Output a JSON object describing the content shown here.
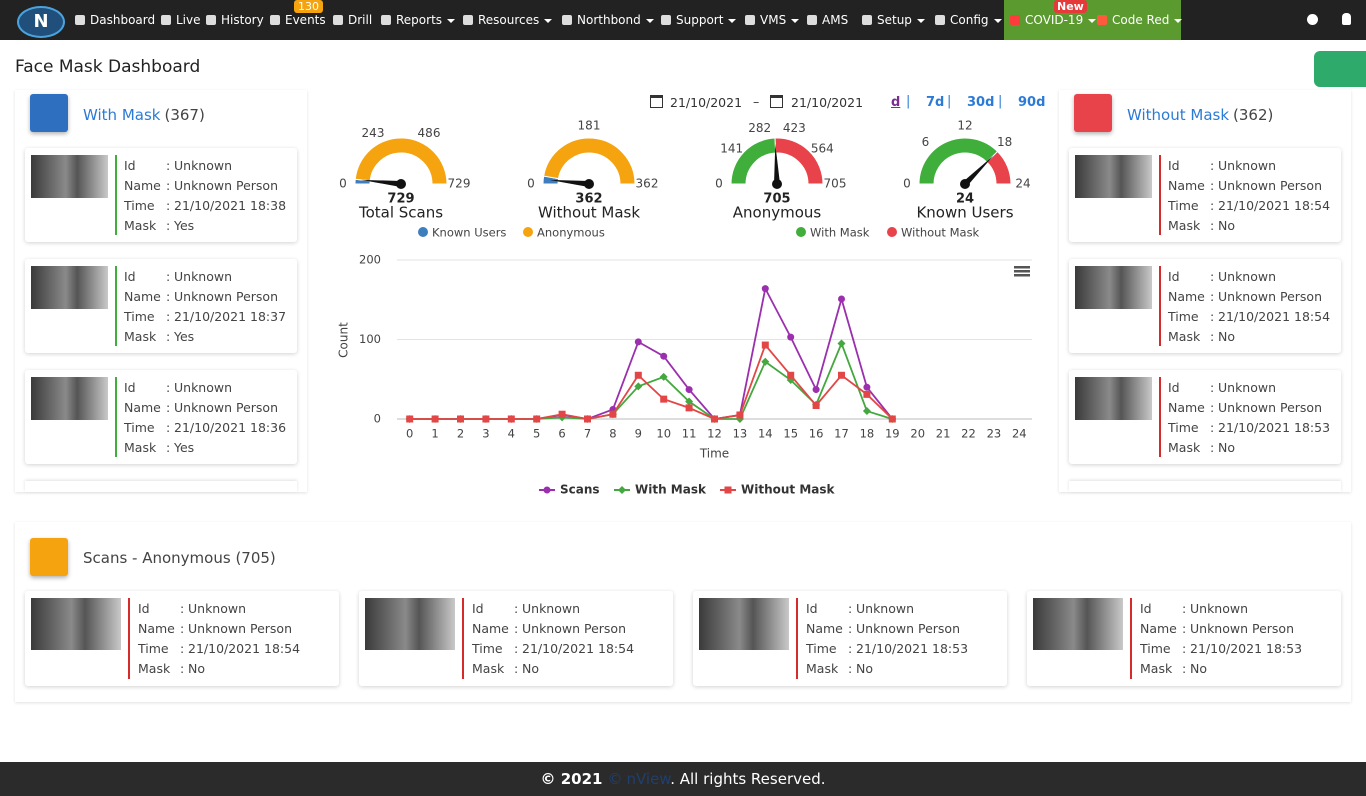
{
  "nav": {
    "logo": "N",
    "items": [
      {
        "label": "Dashboard",
        "dropdown": false
      },
      {
        "label": "Live",
        "dropdown": false
      },
      {
        "label": "History",
        "dropdown": false
      },
      {
        "label": "Events",
        "dropdown": false
      },
      {
        "label": "Drill",
        "dropdown": false
      },
      {
        "label": "Reports",
        "dropdown": true
      },
      {
        "label": "Resources",
        "dropdown": true
      },
      {
        "label": "Northbond",
        "dropdown": true
      },
      {
        "label": "Support",
        "dropdown": true
      },
      {
        "label": "VMS",
        "dropdown": true
      },
      {
        "label": "AMS",
        "dropdown": false
      },
      {
        "label": "Setup",
        "dropdown": true
      },
      {
        "label": "Config",
        "dropdown": true
      },
      {
        "label": "COVID-19",
        "dropdown": true
      },
      {
        "label": "Code Red",
        "dropdown": true
      }
    ],
    "events_badge": "130",
    "new_badge": "New"
  },
  "page_title": "Face Mask Dashboard",
  "separator": ":",
  "field_labels": [
    "Id",
    "Name",
    "Time",
    "Mask"
  ],
  "with_mask": {
    "title": "With Mask",
    "count": "(367)",
    "cards": [
      {
        "id": "Unknown",
        "name": "Unknown Person",
        "time": "21/10/2021 18:38",
        "mask": "Yes"
      },
      {
        "id": "Unknown",
        "name": "Unknown Person",
        "time": "21/10/2021 18:37",
        "mask": "Yes"
      },
      {
        "id": "Unknown",
        "name": "Unknown Person",
        "time": "21/10/2021 18:36",
        "mask": "Yes"
      }
    ]
  },
  "without_mask": {
    "title": "Without Mask",
    "count": "(362)",
    "cards": [
      {
        "id": "Unknown",
        "name": "Unknown Person",
        "time": "21/10/2021 18:54",
        "mask": "No"
      },
      {
        "id": "Unknown",
        "name": "Unknown Person",
        "time": "21/10/2021 18:54",
        "mask": "No"
      },
      {
        "id": "Unknown",
        "name": "Unknown Person",
        "time": "21/10/2021 18:53",
        "mask": "No"
      }
    ]
  },
  "anonymous": {
    "title": "Scans - Anonymous (705)",
    "cards": [
      {
        "id": "Unknown",
        "name": "Unknown Person",
        "time": "21/10/2021 18:54",
        "mask": "No"
      },
      {
        "id": "Unknown",
        "name": "Unknown Person",
        "time": "21/10/2021 18:54",
        "mask": "No"
      },
      {
        "id": "Unknown",
        "name": "Unknown Person",
        "time": "21/10/2021 18:53",
        "mask": "No"
      },
      {
        "id": "Unknown",
        "name": "Unknown Person",
        "time": "21/10/2021 18:53",
        "mask": "No"
      }
    ]
  },
  "date_range": {
    "from": "21/10/2021",
    "dash": "–",
    "to": "21/10/2021",
    "periods": [
      "d",
      "7d",
      "30d",
      "90d"
    ],
    "divider": "|"
  },
  "gauges": [
    {
      "title": "Total Scans",
      "value": 729,
      "range": [
        0,
        729
      ],
      "ticks": [
        0,
        243,
        486,
        729
      ],
      "bands": [
        {
          "color": "#3d7ebf",
          "to": 24
        },
        {
          "color": "#f5a30f",
          "to": 729
        }
      ],
      "needle": 24
    },
    {
      "title": "Without Mask",
      "value": 362,
      "range": [
        0,
        362
      ],
      "ticks": [
        0,
        181,
        362
      ],
      "bands": [
        {
          "color": "#3d7ebf",
          "to": 20
        },
        {
          "color": "#f5a30f",
          "to": 362
        }
      ],
      "needle": 12
    },
    {
      "title": "Anonymous",
      "value": 705,
      "range": [
        0,
        705
      ],
      "ticks": [
        0,
        141,
        282,
        423,
        564,
        705
      ],
      "bands": [
        {
          "color": "#3fae3a",
          "to": 343
        },
        {
          "color": "#e8434a",
          "to": 705
        }
      ],
      "needle": 343
    },
    {
      "title": "Known Users",
      "value": 24,
      "range": [
        0,
        24
      ],
      "ticks": [
        0,
        6,
        12,
        18,
        24
      ],
      "bands": [
        {
          "color": "#3fae3a",
          "to": 18
        },
        {
          "color": "#e8434a",
          "to": 24
        }
      ],
      "needle": 18
    }
  ],
  "gauge_legends": [
    [
      {
        "name": "Known Users",
        "color": "#3d7ebf"
      },
      {
        "name": "Anonymous",
        "color": "#f5a30f"
      }
    ],
    [
      {
        "name": "With Mask",
        "color": "#3fae3a"
      },
      {
        "name": "Without Mask",
        "color": "#e8434a"
      }
    ]
  ],
  "chart_data": {
    "type": "line",
    "x_label": "Time",
    "y_label": "Count",
    "categories": [
      "0",
      "1",
      "2",
      "3",
      "4",
      "5",
      "6",
      "7",
      "8",
      "9",
      "10",
      "11",
      "12",
      "13",
      "14",
      "15",
      "16",
      "17",
      "18",
      "19",
      "20",
      "21",
      "22",
      "23",
      "24"
    ],
    "series": [
      {
        "name": "Scans",
        "color": "#9b2fae",
        "marker": "circle",
        "values": [
          0,
          0,
          0,
          0,
          0,
          0,
          5,
          0,
          12,
          97,
          79,
          37,
          0,
          5,
          164,
          103,
          37,
          151,
          40,
          0,
          null,
          null,
          null,
          null,
          null
        ]
      },
      {
        "name": "With Mask",
        "color": "#43a83e",
        "marker": "diamond",
        "values": [
          0,
          0,
          0,
          0,
          0,
          0,
          2,
          0,
          6,
          41,
          53,
          22,
          0,
          0,
          72,
          49,
          18,
          95,
          10,
          0,
          null,
          null,
          null,
          null,
          null
        ]
      },
      {
        "name": "Without Mask",
        "color": "#e24646",
        "marker": "square",
        "values": [
          0,
          0,
          0,
          0,
          0,
          0,
          6,
          0,
          6,
          55,
          25,
          14,
          0,
          5,
          93,
          55,
          17,
          55,
          31,
          0,
          null,
          null,
          null,
          null,
          null
        ]
      }
    ],
    "ylim": [
      0,
      200
    ],
    "yticks": [
      0,
      100,
      200
    ],
    "grid": true
  },
  "footer": {
    "copyright": "© 2021",
    "brand_prefix": "©",
    "brand": "nView",
    "suffix": ". All rights Reserved."
  }
}
